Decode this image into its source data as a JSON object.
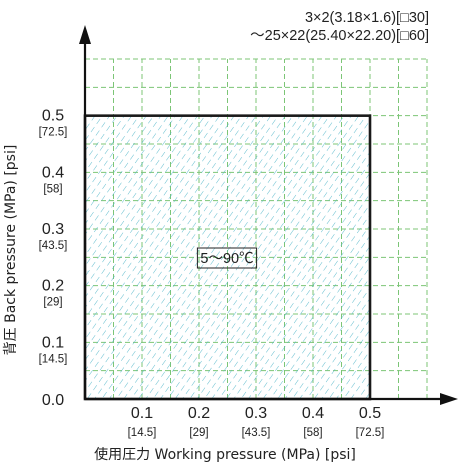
{
  "chart_data": {
    "type": "area",
    "xlabel": "使用圧力 Working pressure (MPa) [psi]",
    "ylabel": "背圧 Back pressure (MPa) [psi]",
    "xlim": [
      0,
      0.6
    ],
    "ylim": [
      0,
      0.6
    ],
    "x_ticks": [
      {
        "value": 0.1,
        "label": "0.1",
        "sub": "[14.5]"
      },
      {
        "value": 0.2,
        "label": "0.2",
        "sub": "[29]"
      },
      {
        "value": 0.3,
        "label": "0.3",
        "sub": "[43.5]"
      },
      {
        "value": 0.4,
        "label": "0.4",
        "sub": "[58]"
      },
      {
        "value": 0.5,
        "label": "0.5",
        "sub": "[72.5]"
      }
    ],
    "y_ticks": [
      {
        "value": 0.0,
        "label": "0.0",
        "sub": ""
      },
      {
        "value": 0.1,
        "label": "0.1",
        "sub": "[14.5]"
      },
      {
        "value": 0.2,
        "label": "0.2",
        "sub": "[29]"
      },
      {
        "value": 0.3,
        "label": "0.3",
        "sub": "[43.5]"
      },
      {
        "value": 0.4,
        "label": "0.4",
        "sub": "[58]"
      },
      {
        "value": 0.5,
        "label": "0.5",
        "sub": "[72.5]"
      }
    ],
    "region": {
      "x_max": 0.5,
      "y_max": 0.5,
      "label": "5～90℃"
    },
    "grid": true,
    "grid_step": 0.05,
    "spec_lines": [
      "3×2(3.18×1.6)[□30]",
      "～25×22(25.40×22.20)[□60]"
    ],
    "colors": {
      "grid": "#7cc576",
      "hatch": "#4fb6c9",
      "region_border": "#1a1a1a",
      "axis": "#111111"
    }
  }
}
